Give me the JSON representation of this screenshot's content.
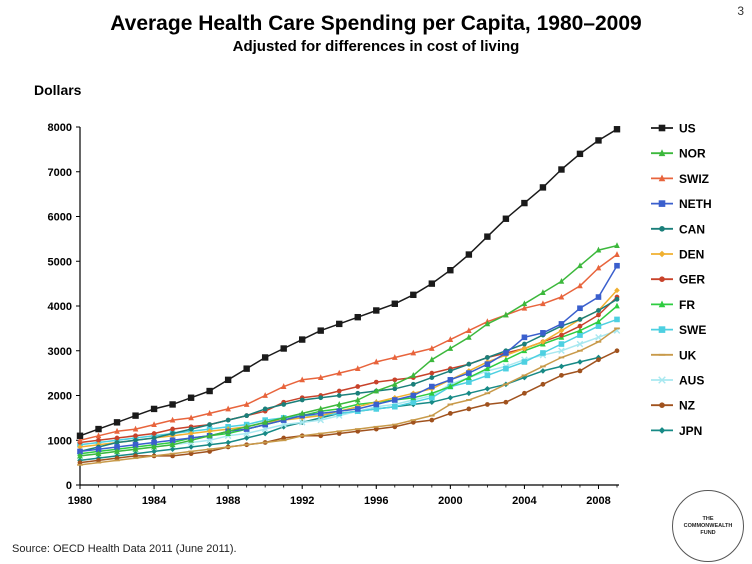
{
  "slide_number": "3",
  "source": "Source: OECD Health Data 2011 (June 2011).",
  "logo_text": "THE COMMONWEALTH FUND",
  "chart_data": {
    "type": "line",
    "title": "Average Health Care Spending per Capita, 1980–2009",
    "subtitle": "Adjusted for differences in cost of living",
    "ylabel": "Dollars",
    "xlabel": "",
    "xlim": [
      1980,
      2009
    ],
    "ylim": [
      0,
      8000
    ],
    "x_ticks": [
      "1980",
      "1984",
      "1988",
      "1992",
      "1996",
      "2000",
      "2004",
      "2008"
    ],
    "y_ticks": [
      "0",
      "1000",
      "2000",
      "3000",
      "4000",
      "5000",
      "6000",
      "7000",
      "8000"
    ],
    "legend_position": "right",
    "x": [
      1980,
      1981,
      1982,
      1983,
      1984,
      1985,
      1986,
      1987,
      1988,
      1989,
      1990,
      1991,
      1992,
      1993,
      1994,
      1995,
      1996,
      1997,
      1998,
      1999,
      2000,
      2001,
      2002,
      2003,
      2004,
      2005,
      2006,
      2007,
      2008,
      2009
    ],
    "series": [
      {
        "name": "US",
        "color": "#1a1a1a",
        "marker": "square",
        "values": [
          1100,
          1250,
          1400,
          1550,
          1700,
          1800,
          1950,
          2100,
          2350,
          2600,
          2850,
          3050,
          3250,
          3450,
          3600,
          3750,
          3900,
          4050,
          4250,
          4500,
          4800,
          5150,
          5550,
          5950,
          6300,
          6650,
          7050,
          7400,
          7700,
          7950
        ]
      },
      {
        "name": "NOR",
        "color": "#3cb83c",
        "marker": "triangle",
        "values": [
          650,
          700,
          750,
          800,
          850,
          900,
          1000,
          1100,
          1200,
          1300,
          1400,
          1500,
          1600,
          1700,
          1800,
          1900,
          2100,
          2250,
          2450,
          2800,
          3050,
          3300,
          3600,
          3800,
          4050,
          4300,
          4550,
          4900,
          5250,
          5350
        ]
      },
      {
        "name": "SWIZ",
        "color": "#e8643c",
        "marker": "triangle",
        "values": [
          1000,
          1100,
          1200,
          1250,
          1350,
          1450,
          1500,
          1600,
          1700,
          1800,
          2000,
          2200,
          2350,
          2400,
          2500,
          2600,
          2750,
          2850,
          2950,
          3050,
          3250,
          3450,
          3650,
          3800,
          3950,
          4050,
          4200,
          4450,
          4850,
          5150
        ]
      },
      {
        "name": "NETH",
        "color": "#3a5fcd",
        "marker": "square",
        "values": [
          750,
          800,
          850,
          900,
          950,
          1000,
          1050,
          1100,
          1200,
          1250,
          1350,
          1450,
          1550,
          1600,
          1650,
          1700,
          1800,
          1900,
          2000,
          2200,
          2350,
          2500,
          2700,
          2950,
          3300,
          3400,
          3600,
          3950,
          4200,
          4900
        ]
      },
      {
        "name": "CAN",
        "color": "#1a7f7a",
        "marker": "circle",
        "values": [
          750,
          850,
          950,
          1000,
          1050,
          1150,
          1250,
          1350,
          1450,
          1550,
          1700,
          1800,
          1900,
          1950,
          2000,
          2050,
          2100,
          2150,
          2250,
          2400,
          2550,
          2700,
          2850,
          3000,
          3150,
          3350,
          3550,
          3700,
          3900,
          4150
        ]
      },
      {
        "name": "DEN",
        "color": "#f0b030",
        "marker": "diamond",
        "values": [
          850,
          900,
          950,
          1000,
          1050,
          1100,
          1150,
          1200,
          1250,
          1300,
          1400,
          1450,
          1500,
          1550,
          1650,
          1750,
          1850,
          1950,
          2050,
          2150,
          2350,
          2550,
          2750,
          2900,
          3050,
          3200,
          3450,
          3700,
          3900,
          4350
        ]
      },
      {
        "name": "GER",
        "color": "#c8422a",
        "marker": "circle",
        "values": [
          950,
          1000,
          1050,
          1100,
          1150,
          1250,
          1300,
          1350,
          1450,
          1550,
          1650,
          1850,
          1950,
          2000,
          2100,
          2200,
          2300,
          2350,
          2400,
          2500,
          2600,
          2700,
          2850,
          2950,
          3050,
          3200,
          3350,
          3550,
          3800,
          4200
        ]
      },
      {
        "name": "FR",
        "color": "#2ecc40",
        "marker": "triangle",
        "values": [
          700,
          750,
          800,
          850,
          900,
          950,
          1050,
          1100,
          1150,
          1250,
          1350,
          1450,
          1550,
          1650,
          1700,
          1800,
          1850,
          1900,
          1950,
          2050,
          2200,
          2400,
          2600,
          2800,
          3000,
          3150,
          3300,
          3450,
          3650,
          4000
        ]
      },
      {
        "name": "SWE",
        "color": "#4dd0e1",
        "marker": "square",
        "values": [
          900,
          950,
          1000,
          1050,
          1100,
          1150,
          1200,
          1250,
          1300,
          1350,
          1450,
          1500,
          1550,
          1550,
          1600,
          1650,
          1700,
          1750,
          1850,
          1950,
          2200,
          2300,
          2450,
          2600,
          2750,
          2950,
          3150,
          3350,
          3550,
          3700
        ]
      },
      {
        "name": "UK",
        "color": "#c89a4a",
        "marker": "dash",
        "values": [
          450,
          500,
          550,
          600,
          650,
          700,
          750,
          800,
          850,
          900,
          950,
          1000,
          1100,
          1150,
          1200,
          1250,
          1300,
          1350,
          1450,
          1550,
          1800,
          1900,
          2050,
          2250,
          2450,
          2650,
          2850,
          3000,
          3200,
          3500
        ]
      },
      {
        "name": "AUS",
        "color": "#a8e8f0",
        "marker": "cross",
        "values": [
          650,
          700,
          750,
          800,
          850,
          900,
          950,
          1000,
          1100,
          1150,
          1250,
          1350,
          1400,
          1450,
          1550,
          1650,
          1750,
          1800,
          1900,
          2000,
          2250,
          2400,
          2550,
          2650,
          2800,
          2900,
          3000,
          3150,
          3300,
          3450
        ]
      },
      {
        "name": "NZ",
        "color": "#a0521e",
        "marker": "circle",
        "values": [
          500,
          550,
          600,
          650,
          650,
          650,
          700,
          750,
          850,
          900,
          950,
          1050,
          1100,
          1100,
          1150,
          1200,
          1250,
          1300,
          1400,
          1450,
          1600,
          1700,
          1800,
          1850,
          2050,
          2250,
          2450,
          2550,
          2800,
          3000
        ]
      },
      {
        "name": "JPN",
        "color": "#178a86",
        "marker": "diamond",
        "values": [
          550,
          600,
          650,
          700,
          750,
          800,
          850,
          900,
          950,
          1050,
          1150,
          1300,
          1400,
          1500,
          1600,
          1650,
          1700,
          1750,
          1800,
          1850,
          1950,
          2050,
          2150,
          2250,
          2400,
          2550,
          2650,
          2750,
          2850,
          null
        ]
      }
    ]
  }
}
